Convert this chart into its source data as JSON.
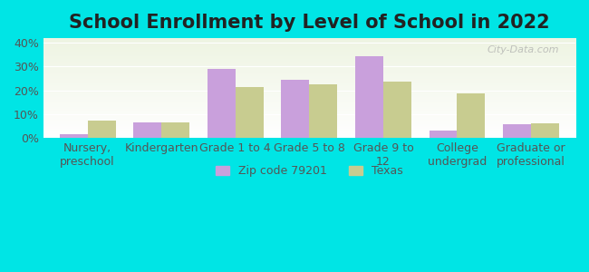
{
  "title": "School Enrollment by Level of School in 2022",
  "categories": [
    "Nursery,\npreschool",
    "Kindergarten",
    "Grade 1 to 4",
    "Grade 5 to 8",
    "Grade 9 to\n12",
    "College\nundergrad",
    "Graduate or\nprofessional"
  ],
  "zip_values": [
    1.5,
    6.5,
    29.0,
    24.5,
    34.5,
    3.0,
    5.5
  ],
  "texas_values": [
    7.0,
    6.5,
    21.5,
    22.5,
    23.5,
    18.5,
    6.0
  ],
  "zip_color": "#c9a0dc",
  "texas_color": "#c8cc90",
  "background_color": "#00e5e5",
  "plot_bg_top": "#eef4e2",
  "plot_bg_bottom": "#ffffff",
  "ylim": [
    0,
    42
  ],
  "yticks": [
    0,
    10,
    20,
    30,
    40
  ],
  "ytick_labels": [
    "0%",
    "10%",
    "20%",
    "30%",
    "40%"
  ],
  "title_fontsize": 15,
  "tick_fontsize": 9,
  "legend_label_zip": "Zip code 79201",
  "legend_label_texas": "Texas",
  "bar_width": 0.38,
  "watermark": "City-Data.com"
}
